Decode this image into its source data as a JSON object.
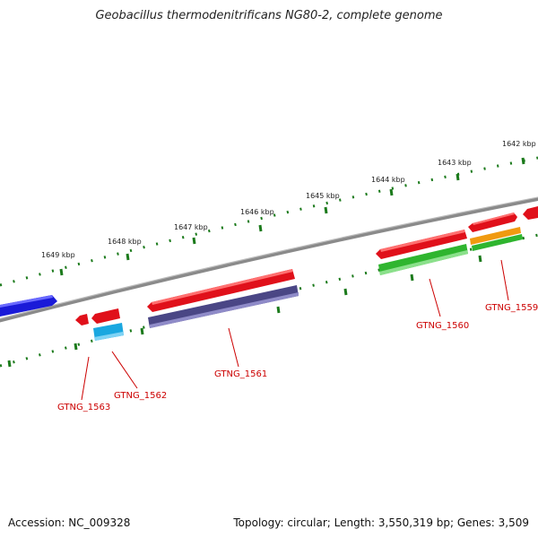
{
  "title": "Geobacillus thermodenitrificans NG80-2, complete genome",
  "accession": "Accession: NC_009328",
  "topology": "Topology: circular; Length: 3,550,319 bp; Genes: 3,509",
  "tick_labels": [
    "1642 kbp",
    "1643 kbp",
    "1644 kbp",
    "1645 kbp",
    "1646 kbp",
    "1647 kbp",
    "1648 kbp",
    "1649 kbp"
  ],
  "gene_labels": [
    "GTNG_1559",
    "GTNG_1560",
    "GTNG_1561",
    "GTNG_1562",
    "GTNG_1563"
  ],
  "colors": {
    "backbone": "#8a8a8a",
    "tick": "#1b7a1b",
    "feature_red": "#e0101a",
    "feature_navy": "#4a4685",
    "feature_green": "#2fb52f",
    "feature_cyan": "#1aa7e0",
    "feature_orange": "#f09a10",
    "feature_blue": "#1a1ad8",
    "label": "#cc0000"
  }
}
